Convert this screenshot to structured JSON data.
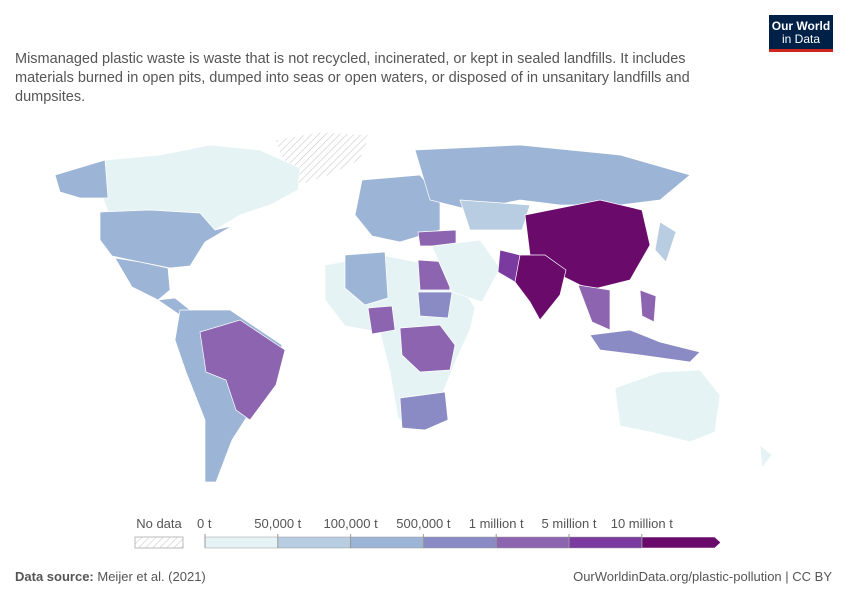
{
  "logo": {
    "line1": "Our World",
    "line2": "in Data"
  },
  "subtitle": "Mismanaged plastic waste is waste that is not recycled, incinerated, or kept in sealed landfills. It includes materials burned in open pits, dumped into seas or open waters, or disposed of in unsanitary landfills and dumpsites.",
  "legend": {
    "no_data": "No data",
    "ticks": [
      {
        "value": 0,
        "label": "0 t"
      },
      {
        "value": 50000,
        "label": "50,000 t"
      },
      {
        "value": 100000,
        "label": "100,000 t"
      },
      {
        "value": 500000,
        "label": "500,000 t"
      },
      {
        "value": 1000000,
        "label": "1 million t"
      },
      {
        "value": 5000000,
        "label": "5 million t"
      },
      {
        "value": 10000000,
        "label": "10 million t"
      }
    ],
    "colors": [
      "#e6f3f5",
      "#b8cde1",
      "#9cb4d5",
      "#8a8ac4",
      "#8c64b0",
      "#7a3a9f",
      "#6a0b6c"
    ]
  },
  "footer": {
    "source_label": "Data source:",
    "source": "Meijer et al. (2021)",
    "url": "OurWorldinData.org/plastic-pollution | CC BY"
  }
}
